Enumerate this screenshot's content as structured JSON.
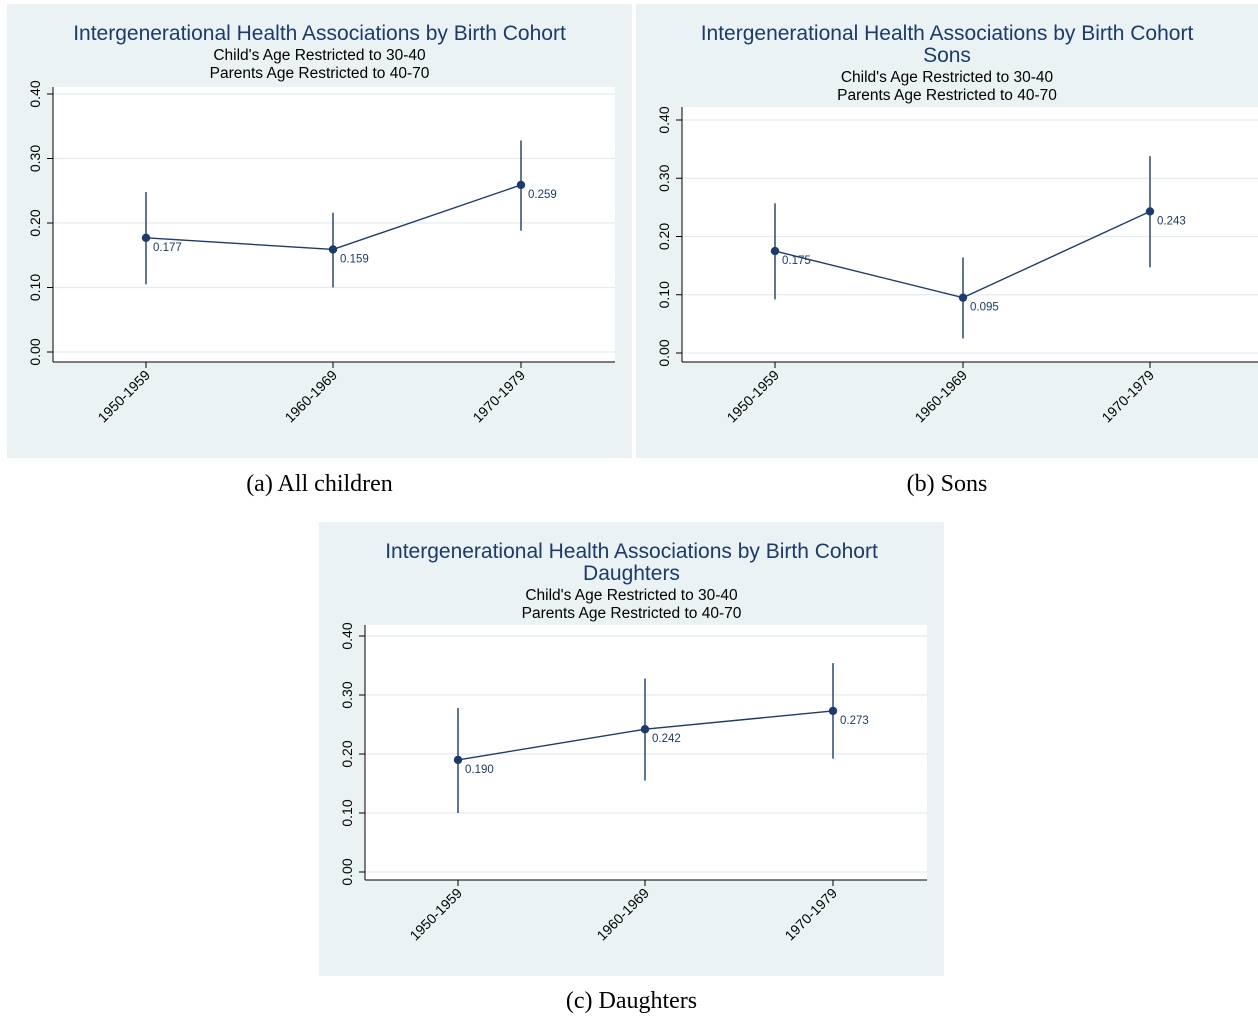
{
  "figures": [
    {
      "caption": "(a) All children",
      "title_lines": [
        "Intergenerational Health Associations by Birth Cohort"
      ],
      "subtitle_lines": [
        "Child's Age Restricted to 30-40",
        "Parents Age Restricted to 40-70"
      ]
    },
    {
      "caption": "(b) Sons",
      "title_lines": [
        "Intergenerational Health Associations by Birth Cohort",
        "Sons"
      ],
      "subtitle_lines": [
        "Child's Age Restricted to 30-40",
        "Parents Age Restricted to 40-70"
      ]
    },
    {
      "caption": "(c) Daughters",
      "title_lines": [
        "Intergenerational Health Associations by Birth Cohort",
        "Daughters"
      ],
      "subtitle_lines": [
        "Child's Age Restricted to 30-40",
        "Parents Age Restricted to 40-70"
      ]
    }
  ],
  "colors": {
    "panel_bg": "#eaf2f3",
    "plot_bg": "#ffffff",
    "series": "#1c3a6e",
    "gridline": "#e3ecee"
  },
  "chart_data": [
    {
      "type": "line",
      "title": "Intergenerational Health Associations by Birth Cohort",
      "subtitle": "Child's Age Restricted to 30-40 / Parents Age Restricted to 40-70",
      "categories": [
        "1950-1959",
        "1960-1969",
        "1970-1979"
      ],
      "values": [
        0.177,
        0.159,
        0.259
      ],
      "data_labels": [
        "0.177",
        "0.159",
        "0.259"
      ],
      "ci_low": [
        0.105,
        0.1,
        0.188
      ],
      "ci_high": [
        0.248,
        0.216,
        0.328
      ],
      "y_ticks": [
        "0.00",
        "0.10",
        "0.20",
        "0.30",
        "0.40"
      ],
      "ylim": [
        0,
        0.4
      ],
      "grid": true,
      "xlabel": "",
      "ylabel": ""
    },
    {
      "type": "line",
      "title": "Intergenerational Health Associations by Birth Cohort Sons",
      "subtitle": "Child's Age Restricted to 30-40 / Parents Age Restricted to 40-70",
      "categories": [
        "1950-1959",
        "1960-1969",
        "1970-1979"
      ],
      "values": [
        0.175,
        0.095,
        0.243
      ],
      "data_labels": [
        "0.175",
        "0.095",
        "0.243"
      ],
      "ci_low": [
        0.092,
        0.025,
        0.147
      ],
      "ci_high": [
        0.257,
        0.164,
        0.338
      ],
      "y_ticks": [
        "0.00",
        "0.10",
        "0.20",
        "0.30",
        "0.40"
      ],
      "ylim": [
        0,
        0.4
      ],
      "grid": true,
      "xlabel": "",
      "ylabel": ""
    },
    {
      "type": "line",
      "title": "Intergenerational Health Associations by Birth Cohort Daughters",
      "subtitle": "Child's Age Restricted to 30-40 / Parents Age Restricted to 40-70",
      "categories": [
        "1950-1959",
        "1960-1969",
        "1970-1979"
      ],
      "values": [
        0.19,
        0.242,
        0.273
      ],
      "data_labels": [
        "0.190",
        "0.242",
        "0.273"
      ],
      "ci_low": [
        0.1,
        0.155,
        0.192
      ],
      "ci_high": [
        0.278,
        0.328,
        0.354
      ],
      "y_ticks": [
        "0.00",
        "0.10",
        "0.20",
        "0.30",
        "0.40"
      ],
      "ylim": [
        0,
        0.4
      ],
      "grid": true,
      "xlabel": "",
      "ylabel": ""
    }
  ]
}
